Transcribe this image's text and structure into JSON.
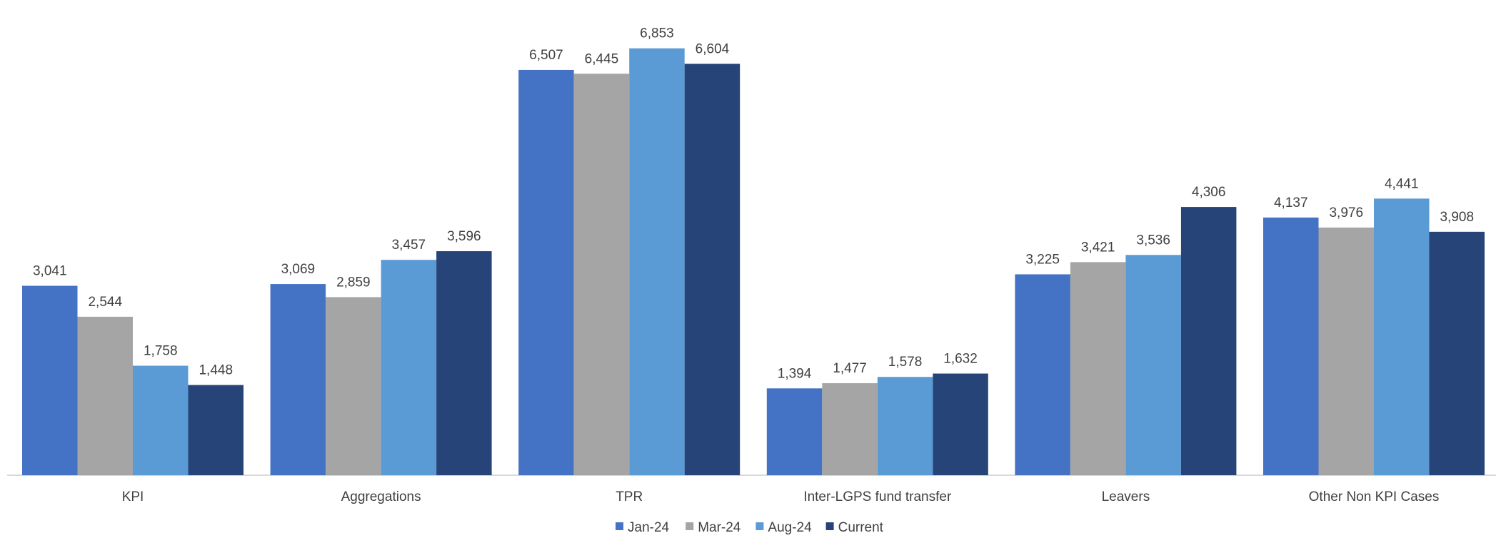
{
  "chart_data": {
    "type": "bar",
    "categories": [
      "KPI",
      "Aggregations",
      "TPR",
      "Inter-LGPS fund transfer",
      "Leavers",
      "Other Non KPI Cases"
    ],
    "series": [
      {
        "name": "Jan-24",
        "color": "#4472C4",
        "values": [
          3041,
          3069,
          6507,
          1394,
          3225,
          4137
        ],
        "labels": [
          "3,041",
          "3,069",
          "6,507",
          "1,394",
          "3,225",
          "4,137"
        ]
      },
      {
        "name": "Mar-24",
        "color": "#A5A5A5",
        "values": [
          2544,
          2859,
          6445,
          1477,
          3421,
          3976
        ],
        "labels": [
          "2,544",
          "2,859",
          "6,445",
          "1,477",
          "3,421",
          "3,976"
        ]
      },
      {
        "name": "Aug-24",
        "color": "#5B9BD5",
        "values": [
          1758,
          3457,
          6853,
          1578,
          3536,
          4441
        ],
        "labels": [
          "1,758",
          "3,457",
          "6,853",
          "1,578",
          "3,536",
          "4,441"
        ]
      },
      {
        "name": "Current",
        "color": "#264478",
        "values": [
          1448,
          3596,
          6604,
          1632,
          4306,
          3908
        ],
        "labels": [
          "1,448",
          "3,596",
          "6,604",
          "1,632",
          "4,306",
          "3,908"
        ]
      }
    ],
    "ylim": [
      0,
      7300
    ],
    "grid": false,
    "legend_position": "bottom"
  }
}
